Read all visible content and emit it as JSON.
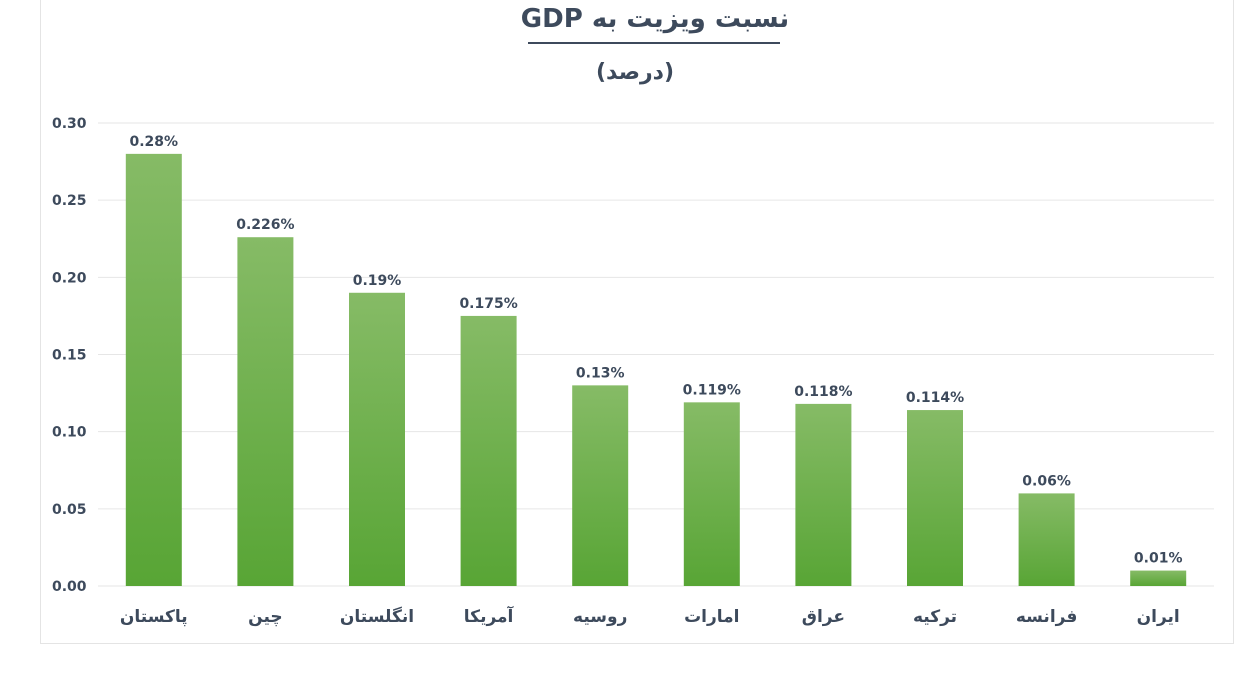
{
  "chart_data": {
    "type": "bar",
    "title": "نسبت ویزیت به GDP",
    "subtitle": "(درصد)",
    "categories": [
      "پاکستان",
      "چین",
      "انگلستان",
      "آمریکا",
      "روسیه",
      "امارات",
      "عراق",
      "ترکیه",
      "فرانسه",
      "ایران"
    ],
    "values": [
      0.28,
      0.226,
      0.19,
      0.175,
      0.13,
      0.119,
      0.118,
      0.114,
      0.06,
      0.01
    ],
    "data_labels": [
      "0.28%",
      "0.226%",
      "0.19%",
      "0.175%",
      "0.13%",
      "0.119%",
      "0.118%",
      "0.114%",
      "0.06%",
      "0.01%"
    ],
    "yticks": [
      "0.00",
      "0.05",
      "0.10",
      "0.15",
      "0.20",
      "0.25",
      "0.30"
    ],
    "ylim": [
      0,
      0.3
    ],
    "grid": true,
    "legend": "none",
    "colors": {
      "bar_top": "#86bb66",
      "bar_bottom": "#58a535",
      "grid": "#e6e6e6",
      "text": "#3d4a5c"
    }
  }
}
